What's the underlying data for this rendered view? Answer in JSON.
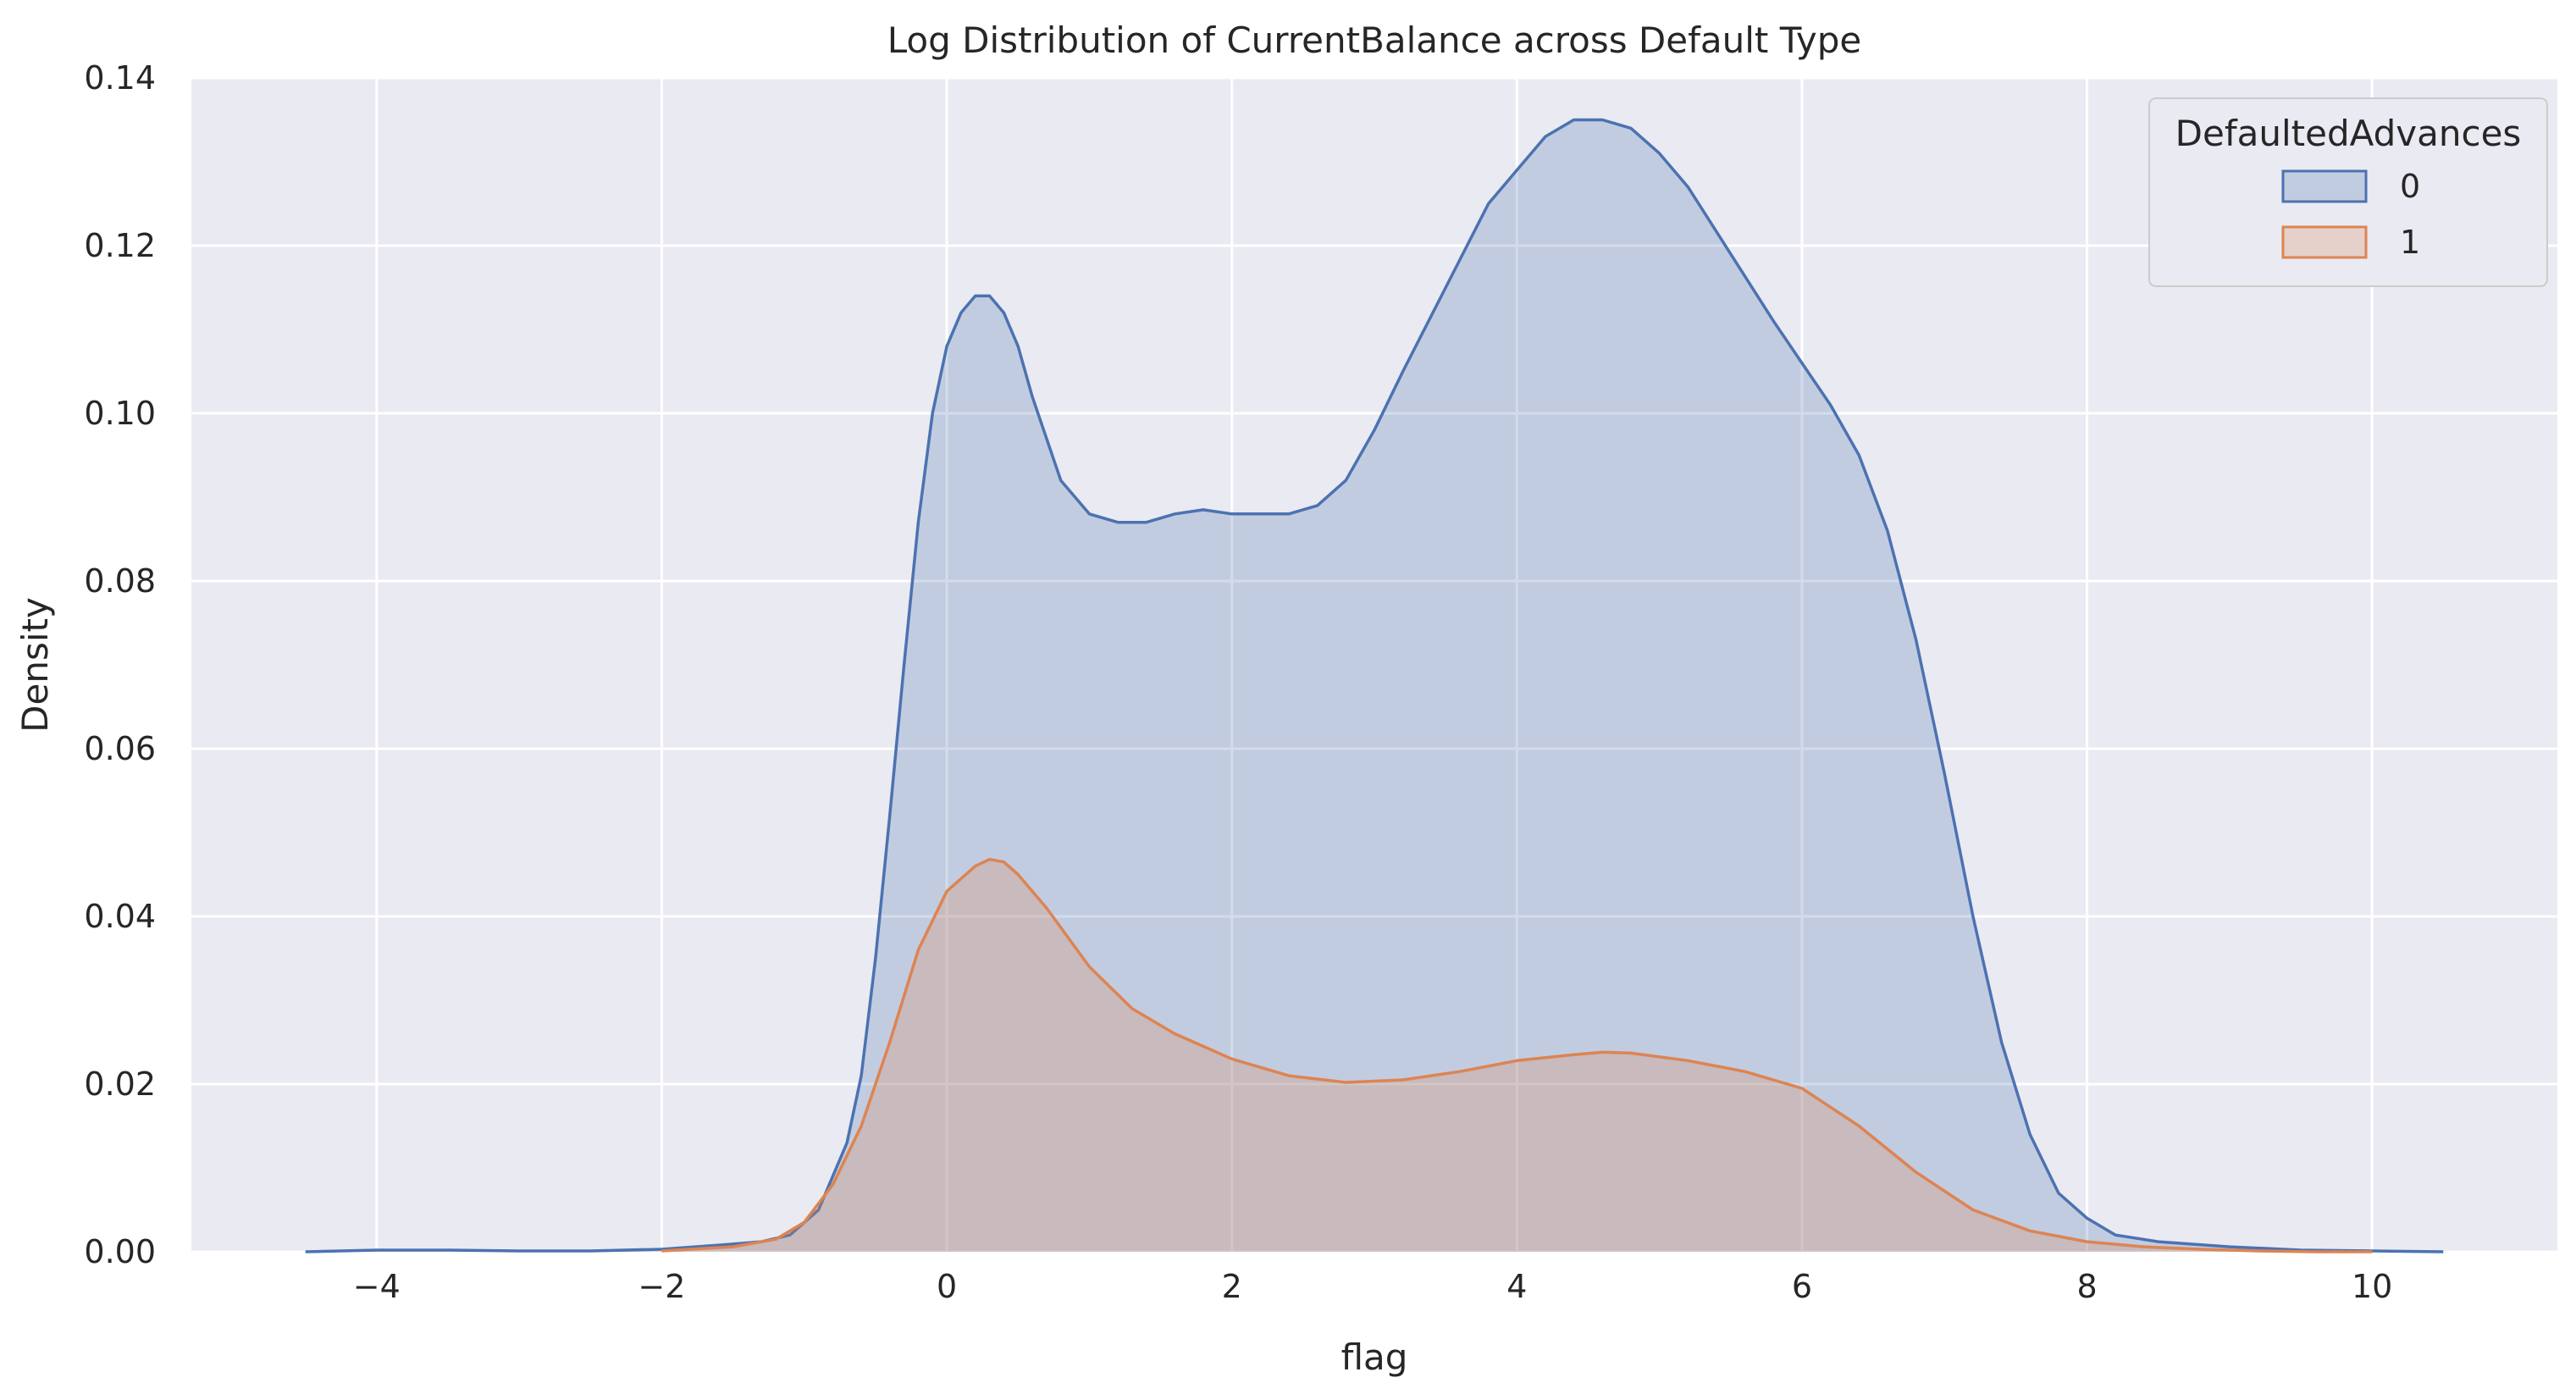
{
  "chart_data": {
    "type": "area",
    "title": "Log Distribution of CurrentBalance across Default Type",
    "xlabel": "flag",
    "ylabel": "Density",
    "xlim": [
      -5.3,
      11.3
    ],
    "ylim": [
      0,
      0.14
    ],
    "xticks": [
      -4,
      -2,
      0,
      2,
      4,
      6,
      8,
      10
    ],
    "xtick_labels": [
      "−4",
      "−2",
      "0",
      "2",
      "4",
      "6",
      "8",
      "10"
    ],
    "yticks": [
      0,
      0.02,
      0.04,
      0.06,
      0.08,
      0.1,
      0.12,
      0.14
    ],
    "ytick_labels": [
      "0.00",
      "0.02",
      "0.04",
      "0.06",
      "0.08",
      "0.10",
      "0.12",
      "0.14"
    ],
    "grid": true,
    "background": "#eaeaf2",
    "legend": {
      "title": "DefaultedAdvances",
      "placement": "top-right"
    },
    "series": [
      {
        "name": "0",
        "color": "#4c72b0",
        "x": [
          -4.5,
          -4.0,
          -3.5,
          -3.0,
          -2.5,
          -2.0,
          -1.6,
          -1.3,
          -1.1,
          -0.9,
          -0.7,
          -0.6,
          -0.5,
          -0.4,
          -0.3,
          -0.2,
          -0.1,
          0.0,
          0.1,
          0.2,
          0.3,
          0.4,
          0.5,
          0.6,
          0.8,
          1.0,
          1.2,
          1.4,
          1.6,
          1.8,
          2.0,
          2.2,
          2.4,
          2.6,
          2.8,
          3.0,
          3.2,
          3.5,
          3.8,
          4.0,
          4.2,
          4.4,
          4.6,
          4.8,
          5.0,
          5.2,
          5.5,
          5.8,
          6.0,
          6.2,
          6.4,
          6.6,
          6.8,
          7.0,
          7.2,
          7.4,
          7.6,
          7.8,
          8.0,
          8.2,
          8.5,
          9.0,
          9.5,
          10.0,
          10.5
        ],
        "y": [
          0.0,
          0.0002,
          0.0002,
          0.0001,
          0.0001,
          0.0003,
          0.0008,
          0.0012,
          0.002,
          0.005,
          0.013,
          0.021,
          0.035,
          0.052,
          0.07,
          0.087,
          0.1,
          0.108,
          0.112,
          0.114,
          0.114,
          0.112,
          0.108,
          0.102,
          0.092,
          0.088,
          0.087,
          0.087,
          0.088,
          0.0885,
          0.088,
          0.088,
          0.088,
          0.089,
          0.092,
          0.098,
          0.105,
          0.115,
          0.125,
          0.129,
          0.133,
          0.135,
          0.135,
          0.134,
          0.131,
          0.127,
          0.119,
          0.111,
          0.106,
          0.101,
          0.095,
          0.086,
          0.073,
          0.057,
          0.04,
          0.025,
          0.014,
          0.007,
          0.004,
          0.002,
          0.0012,
          0.0006,
          0.0002,
          0.0001,
          0.0
        ]
      },
      {
        "name": "1",
        "color": "#dd8452",
        "x": [
          -2.0,
          -1.5,
          -1.2,
          -1.0,
          -0.8,
          -0.6,
          -0.4,
          -0.2,
          0.0,
          0.2,
          0.3,
          0.4,
          0.5,
          0.7,
          1.0,
          1.3,
          1.6,
          2.0,
          2.4,
          2.8,
          3.2,
          3.6,
          4.0,
          4.4,
          4.6,
          4.8,
          5.2,
          5.6,
          6.0,
          6.4,
          6.8,
          7.2,
          7.6,
          8.0,
          8.4,
          8.8,
          9.2,
          9.6,
          10.0
        ],
        "y": [
          0.0001,
          0.0006,
          0.0015,
          0.0035,
          0.008,
          0.015,
          0.025,
          0.036,
          0.043,
          0.046,
          0.0468,
          0.0465,
          0.045,
          0.041,
          0.034,
          0.029,
          0.026,
          0.023,
          0.021,
          0.0202,
          0.0205,
          0.0215,
          0.0228,
          0.0235,
          0.0238,
          0.0237,
          0.0228,
          0.0215,
          0.0195,
          0.015,
          0.0095,
          0.005,
          0.0025,
          0.0012,
          0.0006,
          0.0003,
          0.0001,
          0.0,
          0.0
        ]
      }
    ]
  }
}
